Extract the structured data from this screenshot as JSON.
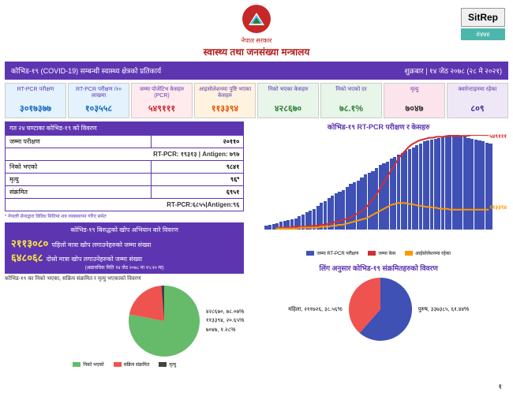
{
  "header": {
    "gov": "नेपाल सरकार",
    "ministry": "स्वास्थ्य तथा जनसंख्या मन्त्रालय",
    "sitrep": "SitRep",
    "sitrep_tag": "#४७४"
  },
  "banner": {
    "title": "कोभिड-१९ (COVID-19) सम्बन्धी स्वास्थ्य क्षेत्रको प्रतिकार्य",
    "date": "शुक्रबार | १४ जेठ २०७८ (२८ मे २०२१)"
  },
  "metrics": [
    {
      "label": "RT-PCR परीक्षण",
      "value": "३०१७३७७",
      "bg": "#e3f2fd",
      "color": "#1565c0"
    },
    {
      "label": "RT-PCR परीक्षण /१० लाखमा",
      "value": "१०३५५८",
      "bg": "#e3f2fd",
      "color": "#1565c0"
    },
    {
      "label": "जम्मा पोजेटिभ केसहरु (PCR)",
      "value": "५४९१११",
      "bg": "#ffebee",
      "color": "#c62828"
    },
    {
      "label": "आइसोलेशनमा पुष्टि भएका केसहरु",
      "value": "११३३९४",
      "bg": "#fff3e0",
      "color": "#e65100"
    },
    {
      "label": "निको भएका केसहरु",
      "value": "४२८६७०",
      "bg": "#e8f5e9",
      "color": "#2e7d32"
    },
    {
      "label": "निको भएको दर",
      "value": "७८.१%",
      "bg": "#e8f5e9",
      "color": "#2e7d32"
    },
    {
      "label": "मृत्यु",
      "value": "७०४७",
      "bg": "#fce4ec",
      "color": "#333"
    },
    {
      "label": "क्वारेन्टाइनमा रहेका",
      "value": "८०९",
      "bg": "#ede7f6",
      "color": "#4527a0"
    }
  ],
  "last24": {
    "title": "गत २४ घण्टाका कोभिड-१९ को विवरण",
    "rows": [
      {
        "k": "जम्मा परीक्षण",
        "v": "२०११०",
        "sub": "RT-PCR: १९३१३ | Antigen: ७९७"
      },
      {
        "k": "निको भएको",
        "v": "९८४१"
      },
      {
        "k": "मृत्यु",
        "v": "९६*"
      },
      {
        "k": "संक्रमित",
        "v": "६९५१",
        "sub": "RT-PCR:६८५५|Antigen:९६"
      }
    ],
    "note": "* नेपाली सेनाद्वारा विविध मितिमा शव व्यवस्थापन गरिए समेत"
  },
  "vax": {
    "title": "कोभिड-१९ बिरुद्धको खोप अभियान बारे विवरण",
    "first_num": "२११३०८०",
    "first_txt": "पहिलो मात्रा खोप लगाउनेहरुको जम्मा संख्या",
    "second_num": "६४८०६८",
    "second_txt": "दोस्रो मात्रा खोप लगाउनेहरुको जम्मा संख्या",
    "date": "(अद्यावधिक मिति १४ जेठ २०७८ मा १५:२० मा)"
  },
  "pie1": {
    "title": "कोभिड-१९ का निको भएका, सक्रिय संक्रमित र मृत्यु भएकाको विवरण",
    "slices": [
      {
        "label": "४२८६७०, ७८.०७%",
        "color": "#66bb6a",
        "pct": 78.07
      },
      {
        "label": "११३३९४, २०.६५%",
        "color": "#ef5350",
        "pct": 20.65
      },
      {
        "label": "७०४७, १.२८%",
        "color": "#424242",
        "pct": 1.28
      }
    ],
    "legend": [
      {
        "t": "निको भएको",
        "c": "#66bb6a"
      },
      {
        "t": "सक्रिय संक्रमित",
        "c": "#ef5350"
      },
      {
        "t": "मृत्यु",
        "c": "#424242"
      }
    ]
  },
  "chart": {
    "title": "कोभिड-१९ RT-PCR परीक्षण र केसहरु",
    "max_label": "५४९१११",
    "min_label": "११३३९४",
    "bars": [
      4,
      5,
      6,
      7,
      8,
      9,
      10,
      11,
      12,
      14,
      16,
      18,
      20,
      22,
      25,
      28,
      30,
      33,
      36,
      38,
      40,
      42,
      45,
      48,
      50,
      52,
      55,
      58,
      60,
      62,
      65,
      68,
      70,
      72,
      75,
      77,
      79,
      81,
      83,
      85,
      87,
      89,
      91,
      93,
      94,
      95,
      96,
      97,
      98,
      99,
      100,
      100,
      100,
      99,
      98,
      97,
      96,
      95,
      94,
      93,
      92,
      91
    ],
    "red": [
      2,
      2,
      2,
      2,
      2,
      3,
      3,
      3,
      3,
      3,
      4,
      4,
      4,
      5,
      5,
      6,
      7,
      8,
      9,
      10,
      11,
      12,
      14,
      16,
      18,
      20,
      24,
      28,
      33,
      38,
      44,
      50,
      56,
      62,
      68,
      74,
      79,
      83,
      87,
      90,
      92,
      94,
      95,
      96,
      97,
      97,
      98,
      98,
      98,
      99,
      99,
      99,
      99,
      99,
      99,
      99,
      100,
      100,
      100,
      100,
      100,
      100
    ],
    "orange": [
      1,
      1,
      1,
      1,
      1,
      1,
      1,
      2,
      2,
      2,
      2,
      2,
      2,
      3,
      3,
      3,
      4,
      4,
      5,
      5,
      6,
      7,
      8,
      9,
      10,
      11,
      12,
      14,
      16,
      18,
      20,
      22,
      24,
      26,
      27,
      28,
      28,
      28,
      27,
      27,
      26,
      25,
      25,
      24,
      24,
      23,
      23,
      22,
      22,
      22,
      21,
      21,
      21,
      21,
      21,
      21,
      21,
      21,
      21,
      21,
      21,
      21
    ],
    "legend": [
      {
        "t": "जम्मा RT-PCR परीक्षण",
        "c": "#3f51b5"
      },
      {
        "t": "जम्मा केस",
        "c": "#d32f2f"
      },
      {
        "t": "आईसोलेशनमा रहेका",
        "c": "#ff9800"
      }
    ]
  },
  "pie2": {
    "title": "लिंग अनुसार कोभिड-१९ संक्रमितहरुको विवरण",
    "female": {
      "label": "महिला, २११७२६, ३८.५६%",
      "color": "#ef5350",
      "pct": 38.56
    },
    "male": {
      "label": "पुरुष, ३३७३८५, ६१.४४%",
      "color": "#3f51b5",
      "pct": 61.44
    }
  },
  "page": "१"
}
